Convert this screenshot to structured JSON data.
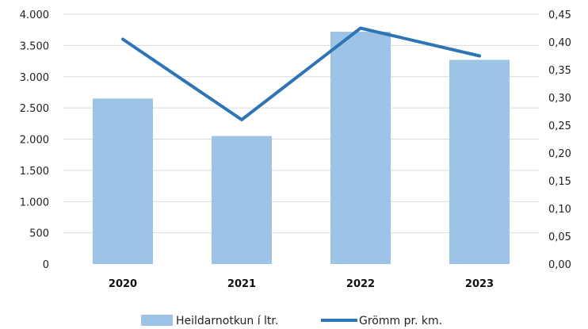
{
  "chart_data": {
    "type": "bar",
    "categories": [
      "2020",
      "2021",
      "2022",
      "2023"
    ],
    "series": [
      {
        "name": "Heildarnotkun í ltr.",
        "type": "bar",
        "axis": "left",
        "values": [
          2650,
          2050,
          3720,
          3270
        ],
        "color": "#9dc3e6"
      },
      {
        "name": "Grömm pr. km.",
        "type": "line",
        "axis": "right",
        "values": [
          0.405,
          0.26,
          0.425,
          0.375
        ],
        "color": "#2e75b6"
      }
    ],
    "y_left": {
      "ylim": [
        0,
        4000
      ],
      "ticks": [
        0,
        500,
        1000,
        1500,
        2000,
        2500,
        3000,
        3500,
        4000
      ],
      "tick_labels": [
        "0",
        "500",
        "1.000",
        "1.500",
        "2.000",
        "2.500",
        "3.000",
        "3.500",
        "4.000"
      ]
    },
    "y_right": {
      "ylim": [
        0,
        0.45
      ],
      "ticks": [
        0,
        0.05,
        0.1,
        0.15,
        0.2,
        0.25,
        0.3,
        0.35,
        0.4,
        0.45
      ],
      "tick_labels": [
        "0,00",
        "0,05",
        "0,10",
        "0,15",
        "0,20",
        "0,25",
        "0,30",
        "0,35",
        "0,40",
        "0,45"
      ]
    },
    "category_labels": [
      "2020",
      "2021",
      "2022",
      "2023"
    ],
    "legend": {
      "position": "bottom",
      "items": [
        "Heildarnotkun í ltr.",
        "Grömm pr. km."
      ]
    },
    "grid": true,
    "title": "",
    "xlabel": "",
    "ylabel": ""
  }
}
